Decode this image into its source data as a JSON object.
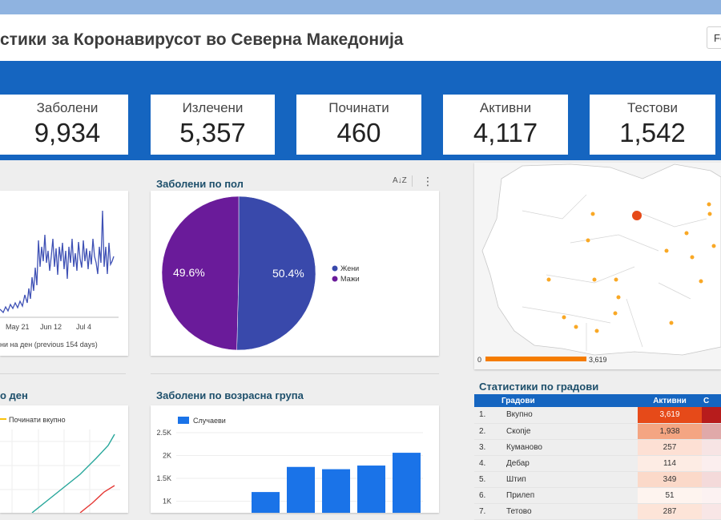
{
  "header": {
    "title": "стики за Коронавирусот во Северна Македонија",
    "date_button": "Fe"
  },
  "stats": [
    {
      "label": "Заболени",
      "value": "9,934"
    },
    {
      "label": "Излечени",
      "value": "5,357"
    },
    {
      "label": "Починати",
      "value": "460"
    },
    {
      "label": "Активни",
      "value": "4,117"
    },
    {
      "label": "Тестови",
      "value": "1,542"
    }
  ],
  "daily_chart": {
    "x_ticks": [
      "May 21",
      "Jun 12",
      "Jul 4"
    ],
    "caption": "ни на ден (previous 154 days)"
  },
  "gender_chart": {
    "title": "Заболени по пол",
    "sort_icon": "az-sort-icon",
    "menu_icon": "more-vert-icon",
    "chart_data": {
      "type": "pie",
      "categories": [
        "Жени",
        "Мажи"
      ],
      "values": [
        50.4,
        49.6
      ],
      "labels": [
        "50.4%",
        "49.6%"
      ],
      "colors": [
        "#3949ab",
        "#6a1b9a"
      ],
      "legend": "right"
    }
  },
  "map": {
    "scale_min": "0",
    "scale_max": "3,619"
  },
  "cumulative_chart": {
    "title": "о ден",
    "legend_label": "Починати вкупно"
  },
  "age_chart": {
    "title": "Заболени по возрасна група",
    "chart_data": {
      "type": "bar",
      "series": [
        {
          "name": "Случаеви",
          "values": [
            1200,
            1750,
            1700,
            1780,
            2060
          ]
        }
      ],
      "y_ticks": [
        "2.5K",
        "2K",
        "1.5K",
        "1K"
      ],
      "ylim": [
        0,
        2500
      ],
      "color": "#1a73e8",
      "legend": "top-left"
    }
  },
  "city_table": {
    "title": "Статистики по градови",
    "headers": [
      "Градови",
      "Активни",
      "С"
    ],
    "rows": [
      {
        "rank": "1.",
        "city": "Вкупно",
        "active": "3,619"
      },
      {
        "rank": "2.",
        "city": "Скопје",
        "active": "1,938"
      },
      {
        "rank": "3.",
        "city": "Куманово",
        "active": "257"
      },
      {
        "rank": "4.",
        "city": "Дебар",
        "active": "114"
      },
      {
        "rank": "5.",
        "city": "Штип",
        "active": "349"
      },
      {
        "rank": "6.",
        "city": "Прилеп",
        "active": "51"
      },
      {
        "rank": "7.",
        "city": "Тетово",
        "active": "287"
      }
    ]
  }
}
